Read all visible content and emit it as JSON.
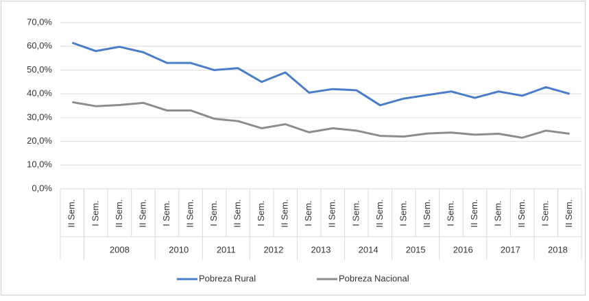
{
  "chart_data": {
    "type": "line",
    "categories": [
      "II Sem.",
      "I Sem.",
      "II Sem.",
      "II Sem.",
      "I Sem.",
      "II Sem.",
      "I Sem.",
      "II Sem.",
      "I Sem.",
      "II Sem.",
      "I Sem.",
      "II Sem.",
      "I Sem.",
      "II Sem.",
      "I Sem.",
      "II Sem.",
      "I Sem.",
      "II Sem.",
      "I Sem.",
      "II Sem.",
      "I Sem.",
      "II Sem."
    ],
    "years": [
      null,
      "2008",
      "2008",
      "2008",
      "2010",
      "2010",
      "2011",
      "2011",
      "2012",
      "2012",
      "2013",
      "2013",
      "2014",
      "2014",
      "2015",
      "2015",
      "2016",
      "2016",
      "2017",
      "2017",
      "2018",
      "2018"
    ],
    "series": [
      {
        "name": "Pobreza Rural",
        "color": "#4a7cc9",
        "values": [
          61.5,
          58,
          59.8,
          57.5,
          53,
          53,
          50,
          50.8,
          45,
          49,
          40.5,
          42,
          41.5,
          35.2,
          38,
          39.5,
          41,
          38.3,
          41,
          39.2,
          42.8,
          40
        ]
      },
      {
        "name": "Pobreza Nacional",
        "color": "#8c8c8c",
        "values": [
          36.5,
          34.8,
          35.3,
          36.2,
          33,
          33,
          29.5,
          28.5,
          25.5,
          27.2,
          23.8,
          25.5,
          24.5,
          22.3,
          22,
          23.3,
          23.7,
          22.8,
          23.2,
          21.5,
          24.5,
          23.2
        ]
      }
    ],
    "ylim": [
      0,
      70
    ],
    "yticks": [
      {
        "value": 0,
        "label": "0,0%"
      },
      {
        "value": 10,
        "label": "10,0%"
      },
      {
        "value": 20,
        "label": "20,0%"
      },
      {
        "value": 30,
        "label": "30,0%"
      },
      {
        "value": 40,
        "label": "40,0%"
      },
      {
        "value": 50,
        "label": "50,0%"
      },
      {
        "value": 60,
        "label": "60,0%"
      },
      {
        "value": 70,
        "label": "70,0%"
      }
    ],
    "grid": true,
    "legend": "bottom"
  }
}
